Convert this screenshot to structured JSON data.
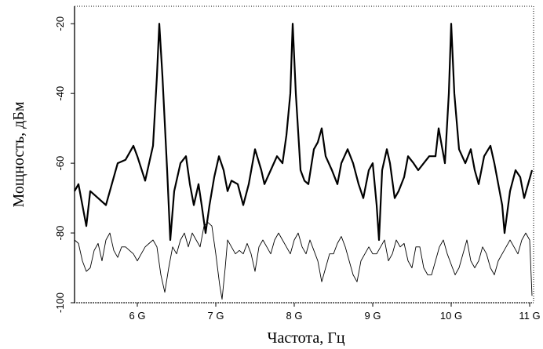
{
  "chart_data": {
    "type": "line",
    "title": "",
    "xlabel": "Частота, Гц",
    "ylabel": "Мощность, дБм",
    "xlim": [
      5.2,
      11.05
    ],
    "ylim": [
      -100,
      -15
    ],
    "x_ticks": [
      {
        "value": 6,
        "label": "6 G"
      },
      {
        "value": 7,
        "label": "7 G"
      },
      {
        "value": 8,
        "label": "8 G"
      },
      {
        "value": 9,
        "label": "9 G"
      },
      {
        "value": 10,
        "label": "10 G"
      },
      {
        "value": 11,
        "label": "11 G"
      }
    ],
    "y_ticks": [
      {
        "value": -20,
        "label": "-20"
      },
      {
        "value": -40,
        "label": "-40"
      },
      {
        "value": -60,
        "label": "-60"
      },
      {
        "value": -80,
        "label": "-80"
      },
      {
        "value": -100,
        "label": "-100"
      }
    ],
    "grid": false,
    "series": [
      {
        "color": "#000000",
        "points": [
          [
            5.2,
            -68
          ],
          [
            5.25,
            -66
          ],
          [
            5.3,
            -72
          ],
          [
            5.35,
            -78
          ],
          [
            5.4,
            -68
          ],
          [
            5.5,
            -70
          ],
          [
            5.6,
            -72
          ],
          [
            5.65,
            -68
          ],
          [
            5.75,
            -60
          ],
          [
            5.85,
            -59
          ],
          [
            5.95,
            -55
          ],
          [
            6.0,
            -58
          ],
          [
            6.1,
            -65
          ],
          [
            6.15,
            -60
          ],
          [
            6.2,
            -55
          ],
          [
            6.25,
            -35
          ],
          [
            6.28,
            -20
          ],
          [
            6.32,
            -35
          ],
          [
            6.38,
            -62
          ],
          [
            6.42,
            -82
          ],
          [
            6.47,
            -68
          ],
          [
            6.55,
            -60
          ],
          [
            6.62,
            -58
          ],
          [
            6.67,
            -66
          ],
          [
            6.72,
            -72
          ],
          [
            6.78,
            -66
          ],
          [
            6.82,
            -72
          ],
          [
            6.87,
            -80
          ],
          [
            6.92,
            -72
          ],
          [
            6.98,
            -64
          ],
          [
            7.04,
            -58
          ],
          [
            7.1,
            -62
          ],
          [
            7.15,
            -68
          ],
          [
            7.2,
            -65
          ],
          [
            7.28,
            -66
          ],
          [
            7.35,
            -72
          ],
          [
            7.42,
            -66
          ],
          [
            7.5,
            -56
          ],
          [
            7.58,
            -62
          ],
          [
            7.62,
            -66
          ],
          [
            7.7,
            -62
          ],
          [
            7.78,
            -58
          ],
          [
            7.85,
            -60
          ],
          [
            7.9,
            -52
          ],
          [
            7.95,
            -40
          ],
          [
            7.98,
            -20
          ],
          [
            8.02,
            -40
          ],
          [
            8.08,
            -62
          ],
          [
            8.13,
            -65
          ],
          [
            8.18,
            -66
          ],
          [
            8.25,
            -56
          ],
          [
            8.3,
            -54
          ],
          [
            8.35,
            -50
          ],
          [
            8.4,
            -58
          ],
          [
            8.48,
            -62
          ],
          [
            8.55,
            -66
          ],
          [
            8.6,
            -60
          ],
          [
            8.68,
            -56
          ],
          [
            8.75,
            -60
          ],
          [
            8.82,
            -66
          ],
          [
            8.88,
            -70
          ],
          [
            8.95,
            -62
          ],
          [
            9.0,
            -60
          ],
          [
            9.05,
            -72
          ],
          [
            9.08,
            -82
          ],
          [
            9.12,
            -62
          ],
          [
            9.18,
            -56
          ],
          [
            9.22,
            -60
          ],
          [
            9.28,
            -70
          ],
          [
            9.33,
            -68
          ],
          [
            9.4,
            -64
          ],
          [
            9.45,
            -58
          ],
          [
            9.52,
            -60
          ],
          [
            9.58,
            -62
          ],
          [
            9.65,
            -60
          ],
          [
            9.72,
            -58
          ],
          [
            9.8,
            -58
          ],
          [
            9.84,
            -50
          ],
          [
            9.88,
            -55
          ],
          [
            9.92,
            -60
          ],
          [
            9.97,
            -40
          ],
          [
            10.0,
            -20
          ],
          [
            10.04,
            -40
          ],
          [
            10.1,
            -56
          ],
          [
            10.18,
            -60
          ],
          [
            10.25,
            -56
          ],
          [
            10.3,
            -62
          ],
          [
            10.35,
            -66
          ],
          [
            10.42,
            -58
          ],
          [
            10.5,
            -55
          ],
          [
            10.55,
            -60
          ],
          [
            10.6,
            -66
          ],
          [
            10.65,
            -72
          ],
          [
            10.68,
            -80
          ],
          [
            10.75,
            -68
          ],
          [
            10.82,
            -62
          ],
          [
            10.88,
            -64
          ],
          [
            10.93,
            -70
          ],
          [
            10.98,
            -66
          ],
          [
            11.03,
            -62
          ]
        ]
      },
      {
        "color": "#000000",
        "points": [
          [
            5.2,
            -82
          ],
          [
            5.25,
            -83
          ],
          [
            5.3,
            -88
          ],
          [
            5.35,
            -91
          ],
          [
            5.4,
            -90
          ],
          [
            5.45,
            -85
          ],
          [
            5.5,
            -83
          ],
          [
            5.55,
            -88
          ],
          [
            5.6,
            -82
          ],
          [
            5.65,
            -80
          ],
          [
            5.7,
            -85
          ],
          [
            5.75,
            -87
          ],
          [
            5.8,
            -84
          ],
          [
            5.85,
            -84
          ],
          [
            5.9,
            -85
          ],
          [
            5.95,
            -86
          ],
          [
            6.0,
            -88
          ],
          [
            6.05,
            -86
          ],
          [
            6.1,
            -84
          ],
          [
            6.15,
            -83
          ],
          [
            6.2,
            -82
          ],
          [
            6.25,
            -84
          ],
          [
            6.3,
            -92
          ],
          [
            6.35,
            -97
          ],
          [
            6.4,
            -90
          ],
          [
            6.45,
            -84
          ],
          [
            6.5,
            -86
          ],
          [
            6.55,
            -82
          ],
          [
            6.6,
            -80
          ],
          [
            6.65,
            -84
          ],
          [
            6.7,
            -80
          ],
          [
            6.75,
            -82
          ],
          [
            6.8,
            -84
          ],
          [
            6.85,
            -78
          ],
          [
            6.9,
            -77
          ],
          [
            6.95,
            -78
          ],
          [
            7.0,
            -86
          ],
          [
            7.05,
            -95
          ],
          [
            7.08,
            -99
          ],
          [
            7.12,
            -90
          ],
          [
            7.15,
            -82
          ],
          [
            7.2,
            -84
          ],
          [
            7.25,
            -86
          ],
          [
            7.3,
            -85
          ],
          [
            7.35,
            -86
          ],
          [
            7.4,
            -83
          ],
          [
            7.45,
            -86
          ],
          [
            7.5,
            -91
          ],
          [
            7.55,
            -84
          ],
          [
            7.6,
            -82
          ],
          [
            7.65,
            -84
          ],
          [
            7.7,
            -86
          ],
          [
            7.75,
            -82
          ],
          [
            7.8,
            -80
          ],
          [
            7.85,
            -82
          ],
          [
            7.9,
            -84
          ],
          [
            7.95,
            -86
          ],
          [
            8.0,
            -82
          ],
          [
            8.05,
            -80
          ],
          [
            8.1,
            -84
          ],
          [
            8.15,
            -86
          ],
          [
            8.2,
            -82
          ],
          [
            8.25,
            -85
          ],
          [
            8.3,
            -88
          ],
          [
            8.35,
            -94
          ],
          [
            8.4,
            -90
          ],
          [
            8.45,
            -86
          ],
          [
            8.5,
            -86
          ],
          [
            8.55,
            -83
          ],
          [
            8.6,
            -81
          ],
          [
            8.65,
            -84
          ],
          [
            8.7,
            -88
          ],
          [
            8.75,
            -92
          ],
          [
            8.8,
            -94
          ],
          [
            8.85,
            -88
          ],
          [
            8.9,
            -86
          ],
          [
            8.95,
            -84
          ],
          [
            9.0,
            -86
          ],
          [
            9.05,
            -86
          ],
          [
            9.1,
            -84
          ],
          [
            9.15,
            -82
          ],
          [
            9.2,
            -88
          ],
          [
            9.25,
            -86
          ],
          [
            9.3,
            -82
          ],
          [
            9.35,
            -84
          ],
          [
            9.4,
            -83
          ],
          [
            9.45,
            -88
          ],
          [
            9.5,
            -90
          ],
          [
            9.55,
            -84
          ],
          [
            9.6,
            -84
          ],
          [
            9.65,
            -90
          ],
          [
            9.7,
            -92
          ],
          [
            9.75,
            -92
          ],
          [
            9.8,
            -88
          ],
          [
            9.85,
            -84
          ],
          [
            9.9,
            -82
          ],
          [
            9.95,
            -86
          ],
          [
            10.0,
            -89
          ],
          [
            10.05,
            -92
          ],
          [
            10.1,
            -90
          ],
          [
            10.15,
            -86
          ],
          [
            10.2,
            -82
          ],
          [
            10.25,
            -88
          ],
          [
            10.3,
            -90
          ],
          [
            10.35,
            -88
          ],
          [
            10.4,
            -84
          ],
          [
            10.45,
            -86
          ],
          [
            10.5,
            -90
          ],
          [
            10.55,
            -92
          ],
          [
            10.6,
            -88
          ],
          [
            10.65,
            -86
          ],
          [
            10.7,
            -84
          ],
          [
            10.75,
            -82
          ],
          [
            10.8,
            -84
          ],
          [
            10.85,
            -86
          ],
          [
            10.9,
            -82
          ],
          [
            10.95,
            -80
          ],
          [
            11.0,
            -82
          ],
          [
            11.03,
            -98
          ]
        ]
      }
    ]
  }
}
